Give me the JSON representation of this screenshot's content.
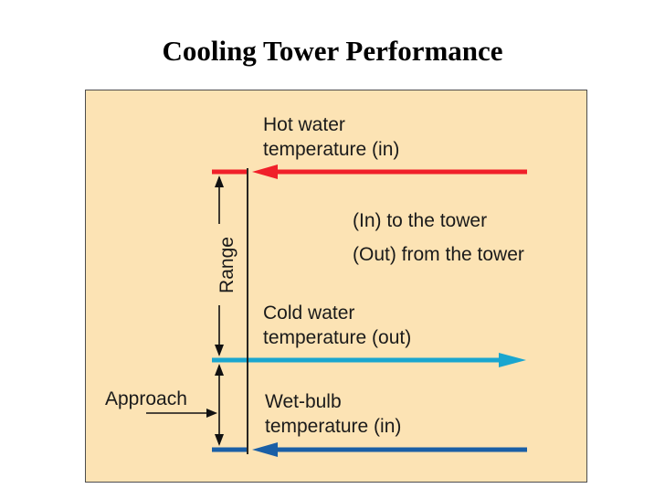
{
  "title": "Cooling Tower Performance",
  "labels": {
    "hot_water_line1": "Hot water",
    "hot_water_line2": "temperature (in)",
    "legend_in": "(In) to the tower",
    "legend_out": "(Out) from the tower",
    "cold_water_line1": "Cold water",
    "cold_water_line2": "temperature (out)",
    "wet_bulb_line1": "Wet-bulb",
    "wet_bulb_line2": "temperature (in)",
    "range": "Range",
    "approach": "Approach"
  },
  "colors": {
    "background": "#fce3b4",
    "hot_water": "#f0202a",
    "cold_water": "#1aa6cf",
    "wet_bulb": "#1a5fa6",
    "dimension_line": "#111111"
  }
}
